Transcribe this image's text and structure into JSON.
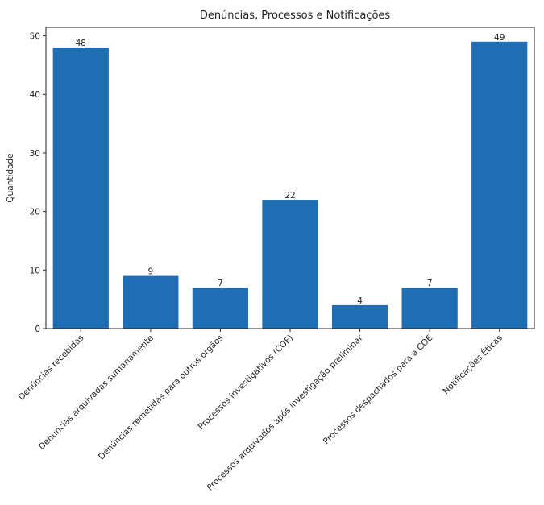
{
  "chart_data": {
    "type": "bar",
    "title": "Denúncias, Processos e Notificações",
    "xlabel": "",
    "ylabel": "Quantidade",
    "categories": [
      "Denúncias recebidas",
      "Denúncias arquivadas sumariamente",
      "Denúncias remetidas para outros órgãos",
      "Processos investigativos (COF)",
      "Processos arquivados após investigação preliminar",
      "Processos despachados para a COE",
      "Notificações Éticas"
    ],
    "values": [
      48,
      9,
      7,
      22,
      4,
      7,
      49
    ],
    "data_labels": [
      "48",
      "9",
      "7",
      "22",
      "4",
      "7",
      "49"
    ],
    "ylim": [
      0,
      51.45
    ],
    "yticks": [
      0,
      10,
      20,
      30,
      40,
      50
    ],
    "ytick_labels": [
      "0",
      "10",
      "20",
      "30",
      "40",
      "50"
    ],
    "bar_color": "#1f6eb4",
    "grid": false,
    "legend": "none"
  }
}
